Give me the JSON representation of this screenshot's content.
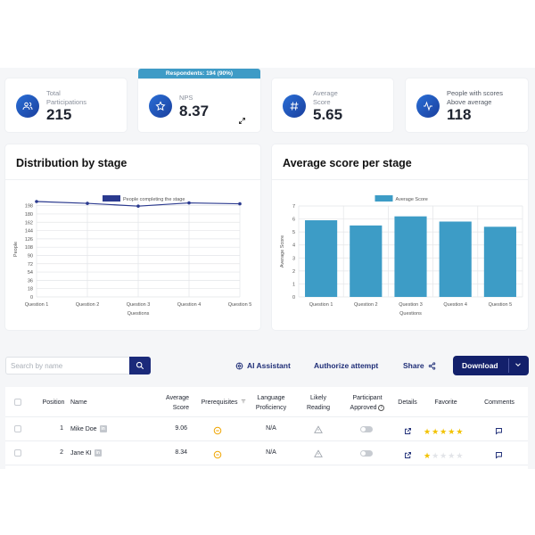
{
  "kpis": [
    {
      "label_lines": [
        "Total",
        "Participations"
      ],
      "value": "215",
      "icon": "users-icon"
    },
    {
      "label_lines": [
        "NPS"
      ],
      "value": "8.37",
      "icon": "star-icon"
    },
    {
      "label_lines": [
        "Average",
        "Score"
      ],
      "value": "5.65",
      "icon": "hash-icon"
    },
    {
      "label_lines": [
        "People with scores",
        "Above average"
      ],
      "value": "118",
      "icon": "pulse-icon"
    }
  ],
  "respondents_badge": "Respondents: 194 (90%)",
  "charts": {
    "distribution_title": "Distribution by stage",
    "average_title": "Average score per stage"
  },
  "chart_data": [
    {
      "type": "line",
      "categories": [
        "Question 1",
        "Question 2",
        "Question 3",
        "Question 4",
        "Question 5"
      ],
      "series": [
        {
          "name": "People completing the stage",
          "values": [
            207,
            203,
            197,
            204,
            202
          ],
          "color": "#2b3a8f"
        }
      ],
      "xlabel": "Questions",
      "ylabel": "People",
      "yticks": [
        0,
        18,
        36,
        54,
        72,
        90,
        108,
        126,
        144,
        162,
        180,
        198
      ],
      "ylim": [
        0,
        207
      ],
      "grid": true,
      "legend": "top-center"
    },
    {
      "type": "bar",
      "categories": [
        "Question 1",
        "Question 2",
        "Question 3",
        "Question 4",
        "Question 5"
      ],
      "series": [
        {
          "name": "Average Score",
          "values": [
            5.9,
            5.5,
            6.2,
            5.8,
            5.4
          ],
          "color": "#3d9cc6"
        }
      ],
      "xlabel": "Questions",
      "ylabel": "Average Score",
      "yticks": [
        0,
        1,
        2,
        3,
        4,
        5,
        6,
        7
      ],
      "ylim": [
        0,
        7
      ],
      "grid": true,
      "legend": "top-center"
    }
  ],
  "toolbar": {
    "search_placeholder": "Search by name",
    "ai_label": "AI Assistant",
    "authorize_label": "Authorize attempt",
    "share_label": "Share",
    "download_label": "Download"
  },
  "table": {
    "headers": {
      "position": "Position",
      "name": "Name",
      "avg_l1": "Average",
      "avg_l2": "Score",
      "prereq": "Prerequisites",
      "lang_l1": "Language",
      "lang_l2": "Proficiency",
      "likely_l1": "Likely",
      "likely_l2": "Reading",
      "approved_l1": "Participant",
      "approved_l2": "Approved",
      "details": "Details",
      "favorite": "Favorite",
      "comments": "Comments"
    },
    "rows": [
      {
        "position": "1",
        "name": "Mike Doe",
        "score": "9.06",
        "language": "N/A",
        "stars": 5
      },
      {
        "position": "2",
        "name": "Jane KI",
        "score": "8.34",
        "language": "N/A",
        "stars": 1
      }
    ],
    "linkedin_badge": "in"
  }
}
